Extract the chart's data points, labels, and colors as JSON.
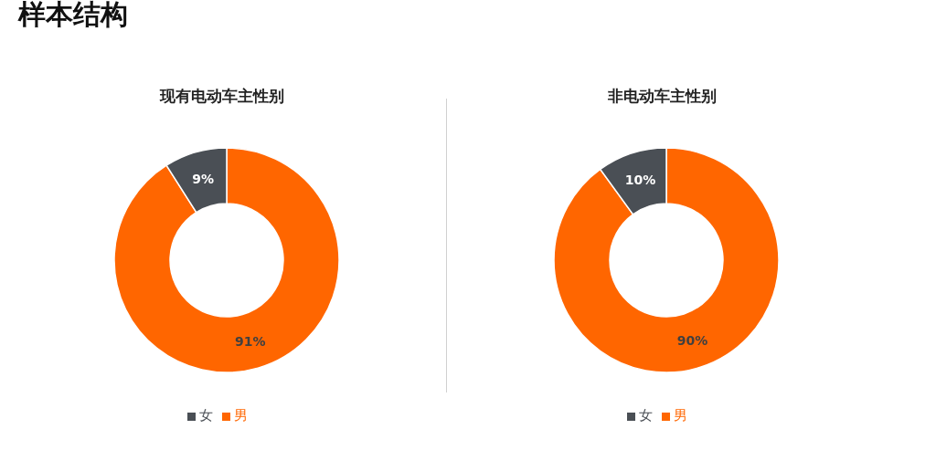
{
  "chart_data": [
    {
      "type": "other",
      "title": "样本结构"
    },
    {
      "type": "donut",
      "title": "现有电动车主性别",
      "categories": [
        "男",
        "女"
      ],
      "values": [
        91,
        9
      ],
      "value_labels": [
        "91%",
        "9%"
      ],
      "colors": [
        "#ff6600",
        "#4a4f55"
      ],
      "legend": "bottom"
    },
    {
      "type": "donut",
      "title": "非电动车主性别",
      "categories": [
        "男",
        "女"
      ],
      "values": [
        90,
        10
      ],
      "value_labels": [
        "90%",
        "10%"
      ],
      "colors": [
        "#ff6600",
        "#4a4f55"
      ],
      "legend": "bottom"
    }
  ]
}
